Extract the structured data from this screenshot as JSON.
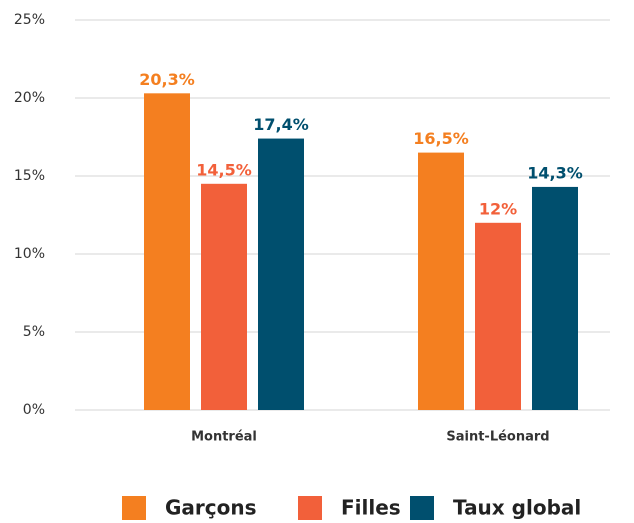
{
  "chart_data": {
    "type": "bar",
    "categories": [
      "Montréal",
      "Saint-Léonard"
    ],
    "series": [
      {
        "name": "Garçons",
        "color": "#f47f20",
        "values": [
          20.3,
          16.5
        ],
        "value_labels": [
          "20,3%",
          "16,5%"
        ]
      },
      {
        "name": "Filles",
        "color": "#f2603a",
        "values": [
          14.5,
          12
        ],
        "value_labels": [
          "14,5%",
          "12%"
        ]
      },
      {
        "name": "Taux global",
        "color": "#004f6e",
        "values": [
          17.4,
          14.3
        ],
        "value_labels": [
          "17,4%",
          "14,3%"
        ]
      }
    ],
    "ylim": [
      0,
      25
    ],
    "yticks": [
      {
        "value": 0,
        "label": "0%"
      },
      {
        "value": 5,
        "label": "5%"
      },
      {
        "value": 10,
        "label": "10%"
      },
      {
        "value": 15,
        "label": "15%"
      },
      {
        "value": 20,
        "label": "20%"
      },
      {
        "value": 25,
        "label": "25%"
      }
    ],
    "grid": true,
    "legend": "bottom"
  }
}
